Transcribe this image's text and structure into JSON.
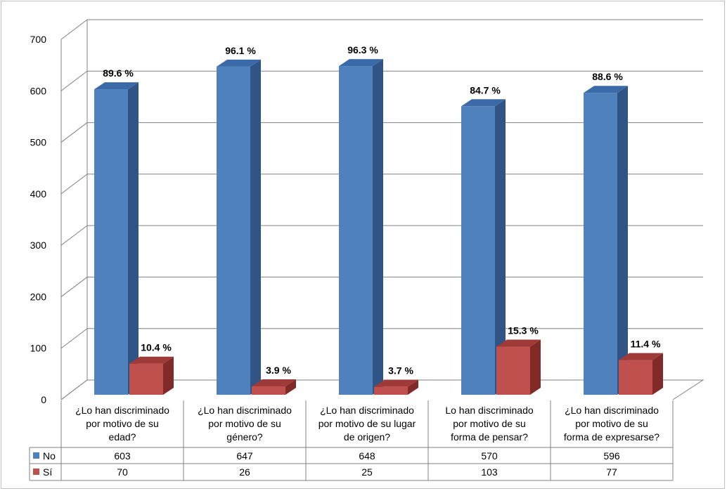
{
  "chart_data": {
    "type": "bar",
    "ylim": [
      0,
      700
    ],
    "yticks": [
      "0",
      "100",
      "200",
      "300",
      "400",
      "500",
      "600",
      "700"
    ],
    "grid": true,
    "legend_position": "data-table-left",
    "categories": [
      [
        "¿Lo han discriminado",
        "por motivo de su",
        "edad?"
      ],
      [
        "¿Lo han discriminado",
        "por motivo de su",
        "género?"
      ],
      [
        "¿Lo han discriminado",
        "por motivo de su lugar",
        "de origen?"
      ],
      [
        "Lo han discriminado",
        "por motivo de su",
        "forma de pensar?"
      ],
      [
        "¿Lo han discriminado",
        "por motivo de su",
        "forma de expresarse?"
      ]
    ],
    "series": [
      {
        "name": "No",
        "values": [
          603,
          647,
          648,
          570,
          596
        ],
        "value_labels": [
          "603",
          "647",
          "648",
          "570",
          "596"
        ],
        "percent_labels": [
          "89.6 %",
          "96.1 %",
          "96.3 %",
          "84.7 %",
          "88.6 %"
        ],
        "color": "#4f81bd",
        "side_color": "#2f5485",
        "top_color": "#3a6aa8"
      },
      {
        "name": "Sí",
        "values": [
          70,
          26,
          25,
          103,
          77
        ],
        "value_labels": [
          "70",
          "26",
          "25",
          "103",
          "77"
        ],
        "percent_labels": [
          "10.4 %",
          "3.9 %",
          "3.7 %",
          "15.3 %",
          "11.4 %"
        ],
        "color": "#c0504d",
        "side_color": "#822a28",
        "top_color": "#9e3a38"
      }
    ]
  }
}
